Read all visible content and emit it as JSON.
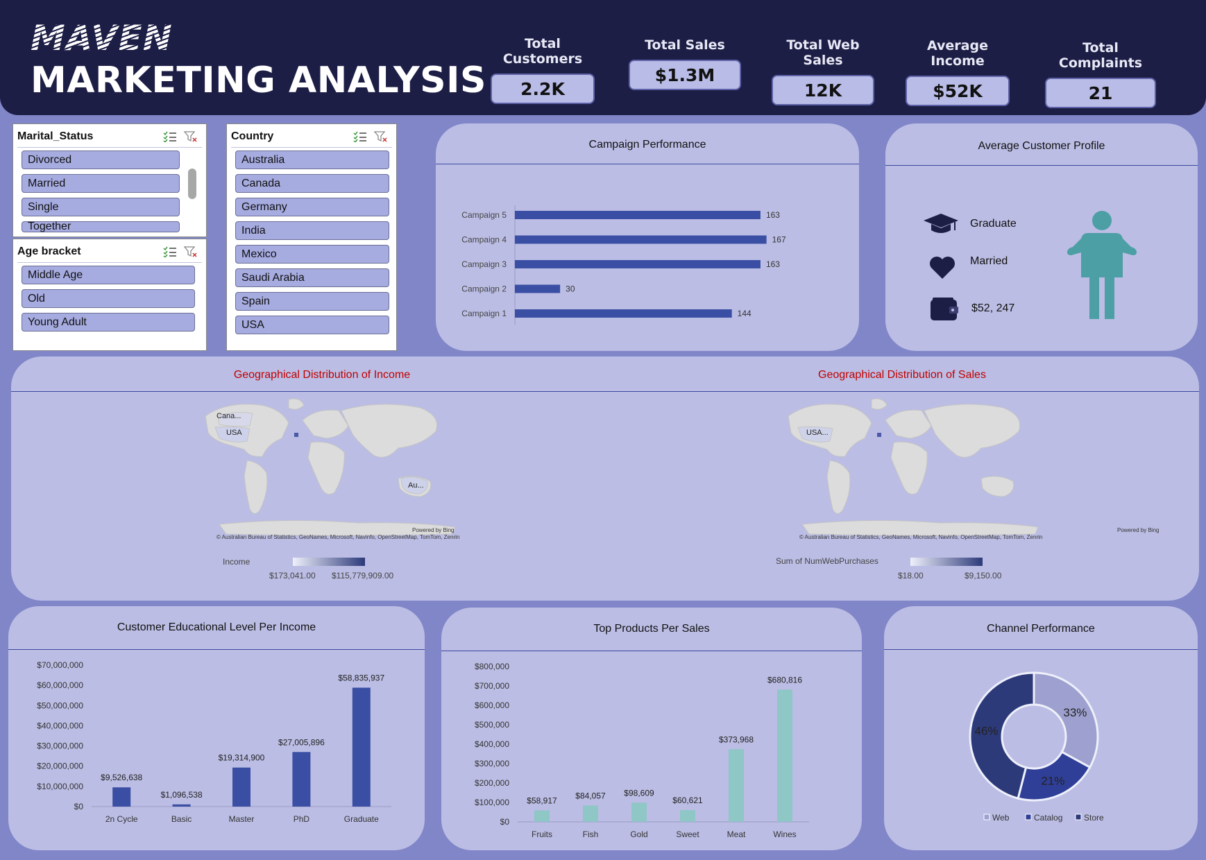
{
  "header": {
    "brand": "MAVEN",
    "title": "MARKETING ANALYSIS",
    "kpis": [
      {
        "label": "Total Customers",
        "value": "2.2K"
      },
      {
        "label": "Total Sales",
        "value": "$1.3M"
      },
      {
        "label": "Total Web Sales",
        "value": "12K"
      },
      {
        "label": "Average Income",
        "value": "$52K"
      },
      {
        "label": "Total Complaints",
        "value": "21"
      }
    ]
  },
  "slicers": {
    "marital": {
      "title": "Marital_Status",
      "items": [
        "Divorced",
        "Married",
        "Single",
        "Together"
      ]
    },
    "age": {
      "title": "Age bracket",
      "items": [
        "Middle Age",
        "Old",
        "Young Adult"
      ]
    },
    "country": {
      "title": "Country",
      "items": [
        "Australia",
        "Canada",
        "Germany",
        "India",
        "Mexico",
        "Saudi Arabia",
        "Spain",
        "USA"
      ]
    }
  },
  "profile": {
    "title": "Average Customer Profile",
    "education": "Graduate",
    "marital": "Married",
    "income": "$52, 247"
  },
  "maps": {
    "income": {
      "title": "Geographical Distribution of Income",
      "labels": [
        "Cana...",
        "USA",
        "Au..."
      ],
      "legend_label": "Income",
      "legend_min": "$173,041.00",
      "legend_max": "$115,779,909.00",
      "powered": "Powered by Bing",
      "credit": "© Australian Bureau of Statistics, GeoNames, Microsoft, Navinfo, OpenStreetMap, TomTom, Zenrin"
    },
    "sales": {
      "title": "Geographical Distribution of Sales",
      "labels": [
        "USA..."
      ],
      "legend_label": "Sum of NumWebPurchases",
      "legend_min": "$18.00",
      "legend_max": "$9,150.00",
      "powered": "Powered by Bing",
      "credit": "© Australian Bureau of Statistics, GeoNames, Microsoft, Navinfo, OpenStreetMap, TomTom, Zenrin"
    }
  },
  "colors": {
    "bar": "#3a4fa3",
    "teal": "#8fc6c6",
    "header": "#1d1e45",
    "panel": "#bbbde4",
    "background": "#8086c8"
  },
  "chart_data": [
    {
      "id": "campaign",
      "type": "bar",
      "orientation": "horizontal",
      "title": "Campaign Performance",
      "categories": [
        "Campaign 5",
        "Campaign 4",
        "Campaign 3",
        "Campaign 2",
        "Campaign 1"
      ],
      "values": [
        163,
        167,
        163,
        30,
        144
      ],
      "xlim": [
        0,
        175
      ]
    },
    {
      "id": "education",
      "type": "bar",
      "title": "Customer Educational Level Per Income",
      "categories": [
        "2n Cycle",
        "Basic",
        "Master",
        "PhD",
        "Graduate"
      ],
      "values": [
        9526638,
        1096538,
        19314900,
        27005896,
        58835937
      ],
      "value_labels": [
        "$9,526,638",
        "$1,096,538",
        "$19,314,900",
        "$27,005,896",
        "$58,835,937"
      ],
      "yticks": [
        "$0",
        "$10,000,000",
        "$20,000,000",
        "$30,000,000",
        "$40,000,000",
        "$50,000,000",
        "$60,000,000",
        "$70,000,000"
      ],
      "ylim": [
        0,
        70000000
      ]
    },
    {
      "id": "products",
      "type": "bar",
      "title": "Top Products Per Sales",
      "categories": [
        "Fruits",
        "Fish",
        "Gold",
        "Sweet",
        "Meat",
        "Wines"
      ],
      "values": [
        58917,
        84057,
        98609,
        60621,
        373968,
        680816
      ],
      "value_labels": [
        "$58,917",
        "$84,057",
        "$98,609",
        "$60,621",
        "$373,968",
        "$680,816"
      ],
      "yticks": [
        "$0",
        "$100,000",
        "$200,000",
        "$300,000",
        "$400,000",
        "$500,000",
        "$600,000",
        "$700,000",
        "$800,000"
      ],
      "ylim": [
        0,
        800000
      ]
    },
    {
      "id": "channel",
      "type": "pie",
      "donut": true,
      "title": "Channel Performance",
      "labels": [
        "Web",
        "Catalog",
        "Store"
      ],
      "values": [
        33,
        21,
        46
      ],
      "value_labels": [
        "33%",
        "21%",
        "46%"
      ],
      "colors": [
        "#9ea1cf",
        "#2f3f97",
        "#2d3a7a"
      ]
    }
  ]
}
